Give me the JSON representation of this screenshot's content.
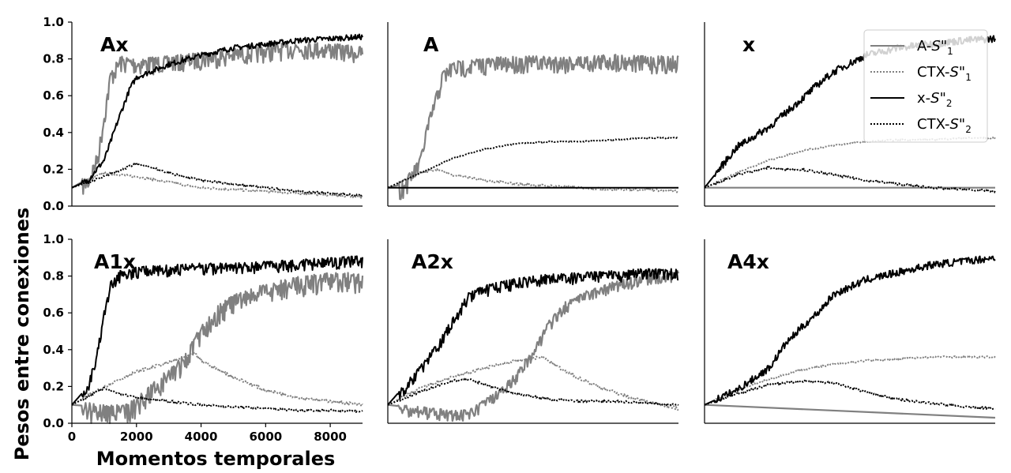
{
  "figure": {
    "ylabel": "Pesos entre conexiones",
    "xlabel": "Momentos temporales"
  },
  "legend": {
    "placement": "top-right of third panel",
    "items": [
      {
        "prefix": "A-",
        "stim": "S\"",
        "sub": "1",
        "color": "#808080",
        "dash": "solid"
      },
      {
        "prefix": "CTX-",
        "stim": "S\"",
        "sub": "1",
        "color": "#808080",
        "dash": "dotted"
      },
      {
        "prefix": "x-",
        "stim": "S\"",
        "sub": "2",
        "color": "#000000",
        "dash": "solid"
      },
      {
        "prefix": "CTX-",
        "stim": "S\"",
        "sub": "2",
        "color": "#000000",
        "dash": "dotted"
      }
    ]
  },
  "chart_data": [
    {
      "type": "line",
      "title": "Ax",
      "xlim": [
        0,
        9000
      ],
      "ylim": [
        0,
        1.0
      ],
      "xticks": [],
      "yticks": [
        "0.0",
        "0.2",
        "0.4",
        "0.6",
        "0.8",
        "1.0"
      ],
      "series": [
        {
          "name": "A-S\"1",
          "x": [
            0,
            500,
            800,
            1000,
            1200,
            1500,
            2000,
            3000,
            4000,
            5000,
            6000,
            7000,
            8000,
            9000
          ],
          "y": [
            0.1,
            0.15,
            0.28,
            0.5,
            0.72,
            0.8,
            0.79,
            0.8,
            0.82,
            0.84,
            0.86,
            0.88,
            0.87,
            0.85
          ],
          "noise": 0.06
        },
        {
          "name": "CTX-S\"1",
          "x": [
            0,
            500,
            1000,
            1500,
            2000,
            3000,
            4000,
            5000,
            6000,
            7000,
            8000,
            9000
          ],
          "y": [
            0.1,
            0.14,
            0.18,
            0.17,
            0.16,
            0.13,
            0.1,
            0.09,
            0.08,
            0.07,
            0.06,
            0.05
          ],
          "noise": 0.006
        },
        {
          "name": "x-S\"2",
          "x": [
            0,
            500,
            1000,
            1500,
            1800,
            2000,
            3000,
            4000,
            5000,
            6000,
            7000,
            8000,
            9000
          ],
          "y": [
            0.1,
            0.14,
            0.25,
            0.5,
            0.64,
            0.7,
            0.77,
            0.82,
            0.86,
            0.88,
            0.9,
            0.91,
            0.92
          ],
          "noise": 0.015
        },
        {
          "name": "CTX-S\"2",
          "x": [
            0,
            1000,
            2000,
            2500,
            3000,
            4000,
            5000,
            6000,
            7000,
            8000,
            9000
          ],
          "y": [
            0.1,
            0.16,
            0.23,
            0.21,
            0.18,
            0.14,
            0.12,
            0.1,
            0.08,
            0.07,
            0.055
          ],
          "noise": 0.006
        }
      ]
    },
    {
      "type": "line",
      "title": "A",
      "xlim": [
        0,
        9000
      ],
      "ylim": [
        0,
        1.0
      ],
      "xticks": [],
      "yticks": [],
      "series": [
        {
          "name": "A-S\"1",
          "x": [
            0,
            500,
            1000,
            1200,
            1500,
            1700,
            2000,
            3000,
            4000,
            5000,
            6000,
            7000,
            8000,
            9000
          ],
          "y": [
            0.1,
            0.12,
            0.25,
            0.42,
            0.6,
            0.72,
            0.77,
            0.79,
            0.8,
            0.8,
            0.8,
            0.81,
            0.8,
            0.8
          ],
          "noise": 0.06
        },
        {
          "name": "CTX-S\"1",
          "x": [
            0,
            1000,
            1500,
            2000,
            3000,
            4000,
            5000,
            6000,
            7000,
            8000,
            9000
          ],
          "y": [
            0.1,
            0.18,
            0.2,
            0.17,
            0.14,
            0.12,
            0.11,
            0.1,
            0.09,
            0.09,
            0.08
          ],
          "noise": 0.006
        },
        {
          "name": "x-S\"2",
          "x": [
            0,
            9000
          ],
          "y": [
            0.1,
            0.1
          ],
          "noise": 0
        },
        {
          "name": "CTX-S\"2",
          "x": [
            0,
            1000,
            2000,
            3000,
            4000,
            5000,
            6000,
            7000,
            8000,
            9000
          ],
          "y": [
            0.1,
            0.18,
            0.26,
            0.31,
            0.34,
            0.35,
            0.35,
            0.36,
            0.37,
            0.37
          ],
          "noise": 0.003
        }
      ]
    },
    {
      "type": "line",
      "title": "x",
      "xlim": [
        0,
        9000
      ],
      "ylim": [
        0,
        1.0
      ],
      "xticks": [],
      "yticks": [],
      "series": [
        {
          "name": "A-S\"1",
          "x": [
            0,
            9000
          ],
          "y": [
            0.1,
            0.1
          ],
          "noise": 0
        },
        {
          "name": "CTX-S\"1",
          "x": [
            0,
            1000,
            2000,
            3000,
            4000,
            5000,
            6000,
            7000,
            8000,
            9000
          ],
          "y": [
            0.1,
            0.18,
            0.25,
            0.3,
            0.33,
            0.35,
            0.36,
            0.36,
            0.37,
            0.37
          ],
          "noise": 0.004
        },
        {
          "name": "x-S\"2",
          "x": [
            0,
            1000,
            2000,
            3000,
            3500,
            4000,
            5000,
            6000,
            7000,
            8000,
            9000
          ],
          "y": [
            0.1,
            0.32,
            0.43,
            0.58,
            0.66,
            0.73,
            0.82,
            0.86,
            0.88,
            0.9,
            0.91
          ],
          "noise": 0.02
        },
        {
          "name": "CTX-S\"2",
          "x": [
            0,
            1000,
            2000,
            2500,
            3000,
            4000,
            5000,
            6000,
            7000,
            8000,
            9000
          ],
          "y": [
            0.1,
            0.17,
            0.21,
            0.2,
            0.2,
            0.17,
            0.14,
            0.12,
            0.1,
            0.09,
            0.08
          ],
          "noise": 0.006
        }
      ]
    },
    {
      "type": "line",
      "title": "A1x",
      "xlim": [
        0,
        9000
      ],
      "ylim": [
        0,
        1.0
      ],
      "xticks": [
        "0",
        "2000",
        "4000",
        "6000",
        "8000"
      ],
      "yticks": [
        "0.0",
        "0.2",
        "0.4",
        "0.6",
        "0.8",
        "1.0"
      ],
      "series": [
        {
          "name": "A-S\"1",
          "x": [
            0,
            800,
            1600,
            2000,
            2500,
            3000,
            3500,
            3800,
            4000,
            4500,
            5000,
            6000,
            7000,
            8000,
            9000
          ],
          "y": [
            0.1,
            0.09,
            0.08,
            0.12,
            0.2,
            0.28,
            0.36,
            0.45,
            0.52,
            0.62,
            0.68,
            0.74,
            0.78,
            0.8,
            0.8
          ],
          "noise": 0.07
        },
        {
          "name": "CTX-S\"1",
          "x": [
            0,
            1000,
            2000,
            3000,
            3500,
            3800,
            4000,
            5000,
            6000,
            7000,
            8000,
            9000
          ],
          "y": [
            0.1,
            0.2,
            0.28,
            0.33,
            0.36,
            0.38,
            0.34,
            0.25,
            0.18,
            0.14,
            0.12,
            0.1
          ],
          "noise": 0.008
        },
        {
          "name": "x-S\"2",
          "x": [
            0,
            500,
            800,
            1000,
            1200,
            1500,
            2000,
            3000,
            4000,
            5000,
            6000,
            7000,
            8000,
            9000
          ],
          "y": [
            0.1,
            0.2,
            0.4,
            0.62,
            0.76,
            0.82,
            0.84,
            0.85,
            0.86,
            0.86,
            0.87,
            0.88,
            0.89,
            0.9
          ],
          "noise": 0.04
        },
        {
          "name": "CTX-S\"2",
          "x": [
            0,
            1000,
            1500,
            2000,
            3000,
            4000,
            5000,
            6000,
            7000,
            8000,
            9000
          ],
          "y": [
            0.1,
            0.19,
            0.16,
            0.14,
            0.12,
            0.1,
            0.09,
            0.08,
            0.07,
            0.07,
            0.065
          ],
          "noise": 0.006
        }
      ]
    },
    {
      "type": "line",
      "title": "A2x",
      "xlim": [
        0,
        9000
      ],
      "ylim": [
        0,
        1.0
      ],
      "xticks": [],
      "yticks": [],
      "series": [
        {
          "name": "A-S\"1",
          "x": [
            0,
            1500,
            2500,
            3500,
            4000,
            4500,
            5000,
            5500,
            6000,
            7000,
            8000,
            9000
          ],
          "y": [
            0.1,
            0.07,
            0.06,
            0.18,
            0.27,
            0.4,
            0.55,
            0.65,
            0.7,
            0.76,
            0.8,
            0.82
          ],
          "noise": 0.04
        },
        {
          "name": "CTX-S\"1",
          "x": [
            0,
            1000,
            2000,
            3000,
            4000,
            4800,
            5500,
            6500,
            7500,
            8500,
            9000
          ],
          "y": [
            0.1,
            0.19,
            0.25,
            0.3,
            0.34,
            0.36,
            0.28,
            0.2,
            0.14,
            0.1,
            0.08
          ],
          "noise": 0.008
        },
        {
          "name": "x-S\"2",
          "x": [
            0,
            1000,
            1500,
            2000,
            2500,
            3000,
            4000,
            5000,
            6000,
            7000,
            8000,
            9000
          ],
          "y": [
            0.1,
            0.3,
            0.42,
            0.56,
            0.7,
            0.74,
            0.78,
            0.8,
            0.81,
            0.82,
            0.83,
            0.83
          ],
          "noise": 0.04
        },
        {
          "name": "CTX-S\"2",
          "x": [
            0,
            1000,
            2000,
            2500,
            3000,
            4000,
            5000,
            6000,
            7000,
            8000,
            9000
          ],
          "y": [
            0.1,
            0.17,
            0.23,
            0.24,
            0.21,
            0.16,
            0.13,
            0.12,
            0.12,
            0.11,
            0.1
          ],
          "noise": 0.006
        }
      ]
    },
    {
      "type": "line",
      "title": "A4x",
      "xlim": [
        0,
        9000
      ],
      "ylim": [
        0,
        1.0
      ],
      "xticks": [],
      "yticks": [],
      "series": [
        {
          "name": "A-S\"1",
          "x": [
            0,
            9000
          ],
          "y": [
            0.1,
            0.03
          ],
          "noise": 0
        },
        {
          "name": "CTX-S\"1",
          "x": [
            0,
            1000,
            2000,
            3000,
            4000,
            5000,
            6000,
            7000,
            8000,
            9000
          ],
          "y": [
            0.1,
            0.18,
            0.24,
            0.29,
            0.32,
            0.34,
            0.35,
            0.36,
            0.36,
            0.36
          ],
          "noise": 0.005
        },
        {
          "name": "x-S\"2",
          "x": [
            0,
            1000,
            2000,
            2500,
            3000,
            3500,
            4000,
            5000,
            6000,
            7000,
            8000,
            9000
          ],
          "y": [
            0.1,
            0.18,
            0.3,
            0.43,
            0.52,
            0.6,
            0.7,
            0.78,
            0.82,
            0.86,
            0.88,
            0.9
          ],
          "noise": 0.02
        },
        {
          "name": "CTX-S\"2",
          "x": [
            0,
            1000,
            2000,
            3000,
            4000,
            5000,
            6000,
            7000,
            8000,
            9000
          ],
          "y": [
            0.1,
            0.16,
            0.21,
            0.23,
            0.22,
            0.17,
            0.13,
            0.11,
            0.09,
            0.08
          ],
          "noise": 0.006
        }
      ]
    }
  ]
}
